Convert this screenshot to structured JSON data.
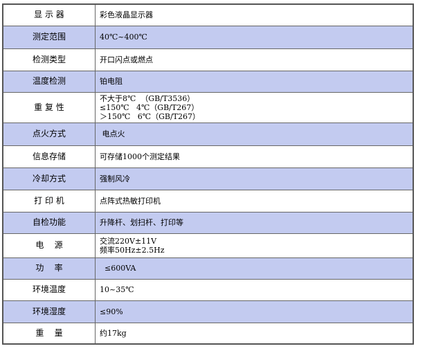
{
  "colors": {
    "stripe": "#c3cbf0",
    "border": "#555555"
  },
  "rows": [
    {
      "label": "显 示 器",
      "value": [
        "彩色液晶显示器"
      ]
    },
    {
      "label": "测定范围",
      "value": [
        "40℃~400℃"
      ]
    },
    {
      "label": "检测类型",
      "value": [
        "开口闪点或燃点"
      ]
    },
    {
      "label": "温度检测",
      "value": [
        "铂电阻"
      ]
    },
    {
      "label": "重 复 性",
      "value": [
        "不大于8℃  （GB/T3536）",
        "≤150℃   4℃（GB/T267）",
        "＞150℃   6℃（GB/T267）"
      ]
    },
    {
      "label": "点火方式",
      "value": [
        " 电点火"
      ]
    },
    {
      "label": "信息存储",
      "value": [
        "可存储1000个测定结果"
      ]
    },
    {
      "label": "冷却方式",
      "value": [
        "强制风冷"
      ]
    },
    {
      "label": "打 印 机",
      "value": [
        "点阵式热敏打印机"
      ]
    },
    {
      "label": "自检功能",
      "value": [
        "升降杆、划扫杆、打印等"
      ]
    },
    {
      "label": "电    源",
      "value": [
        "交流220V±11V",
        "频率50Hz±2.5Hz"
      ]
    },
    {
      "label": "功    率",
      "value": [
        "  ≤600VA"
      ]
    },
    {
      "label": "环境温度",
      "value": [
        "10~35℃"
      ]
    },
    {
      "label": "环境湿度",
      "value": [
        "≤90%"
      ]
    },
    {
      "label": "重    量",
      "value": [
        "约17kg"
      ]
    }
  ]
}
